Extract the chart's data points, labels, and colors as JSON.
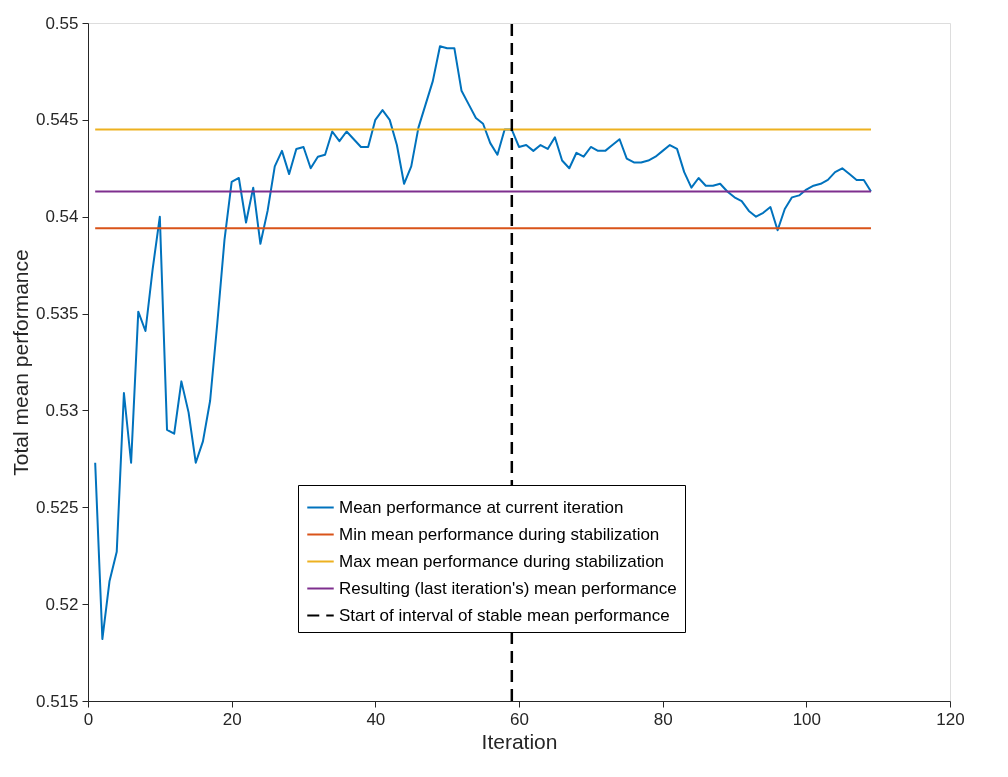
{
  "chart_data": {
    "type": "line",
    "xlabel": "Iteration",
    "ylabel": "Total mean performance",
    "x": [
      1,
      2,
      3,
      4,
      5,
      6,
      7,
      8,
      9,
      10,
      11,
      12,
      13,
      14,
      15,
      16,
      17,
      18,
      19,
      20,
      21,
      22,
      23,
      24,
      25,
      26,
      27,
      28,
      29,
      30,
      31,
      32,
      33,
      34,
      35,
      36,
      37,
      38,
      39,
      40,
      41,
      42,
      43,
      44,
      45,
      46,
      47,
      48,
      49,
      50,
      51,
      52,
      53,
      54,
      55,
      56,
      57,
      58,
      59,
      60,
      61,
      62,
      63,
      64,
      65,
      66,
      67,
      68,
      69,
      70,
      71,
      72,
      73,
      74,
      75,
      76,
      77,
      78,
      79,
      80,
      81,
      82,
      83,
      84,
      85,
      86,
      87,
      88,
      89,
      90,
      91,
      92,
      93,
      94,
      95,
      96,
      97,
      98,
      99,
      100,
      101,
      102,
      103,
      104,
      105,
      106,
      107,
      108,
      109
    ],
    "series": [
      {
        "name": "Mean performance at current iteration",
        "color": "#0072bd",
        "values": [
          0.5273,
          0.5182,
          0.5212,
          0.5227,
          0.5309,
          0.5273,
          0.5351,
          0.5341,
          0.5373,
          0.54,
          0.529,
          0.5288,
          0.5315,
          0.5299,
          0.5273,
          0.5284,
          0.5305,
          0.5345,
          0.5388,
          0.5418,
          0.542,
          0.5397,
          0.5415,
          0.5386,
          0.5403,
          0.5426,
          0.5434,
          0.5422,
          0.5435,
          0.5436,
          0.5425,
          0.5431,
          0.5432,
          0.5444,
          0.5439,
          0.5444,
          0.544,
          0.5436,
          0.5436,
          0.545,
          0.5455,
          0.545,
          0.5437,
          0.5417,
          0.5426,
          0.5446,
          0.5458,
          0.547,
          0.5488,
          0.5487,
          0.5487,
          0.5465,
          0.5458,
          0.5451,
          0.5448,
          0.5438,
          0.5432,
          0.5445,
          0.5445,
          0.5436,
          0.5437,
          0.5434,
          0.5437,
          0.5435,
          0.5441,
          0.5429,
          0.5425,
          0.5433,
          0.5431,
          0.5436,
          0.5434,
          0.5434,
          0.5437,
          0.544,
          0.543,
          0.5428,
          0.5428,
          0.5429,
          0.5431,
          0.5434,
          0.5437,
          0.5435,
          0.5423,
          0.5415,
          0.542,
          0.5416,
          0.5416,
          0.5417,
          0.5413,
          0.541,
          0.5408,
          0.5403,
          0.54,
          0.5402,
          0.5405,
          0.5393,
          0.5404,
          0.541,
          0.5411,
          0.5414,
          0.5416,
          0.5417,
          0.5419,
          0.5423,
          0.5425,
          0.5422,
          0.5419,
          0.5419,
          0.5413
        ]
      }
    ],
    "ref_lines": [
      {
        "axis": "y",
        "value": 0.5394,
        "label": "Min mean performance during stabilization",
        "color": "#d95319"
      },
      {
        "axis": "y",
        "value": 0.5445,
        "label": "Max mean performance during stabilization",
        "color": "#edb120"
      },
      {
        "axis": "y",
        "value": 0.5413,
        "label": "Resulting (last iteration's) mean performance",
        "color": "#7e2f8e"
      },
      {
        "axis": "x",
        "value": 59,
        "label": "Start of interval of stable mean performance",
        "color": "#000000",
        "line_style": "dashed"
      }
    ],
    "xlim": [
      0,
      120
    ],
    "xticks": [
      0,
      20,
      40,
      60,
      80,
      100,
      120
    ],
    "ylim": [
      0.515,
      0.55
    ],
    "yticks": [
      0.515,
      0.52,
      0.525,
      0.53,
      0.535,
      0.54,
      0.545,
      0.55
    ],
    "grid": false,
    "legend": "bottom right"
  }
}
